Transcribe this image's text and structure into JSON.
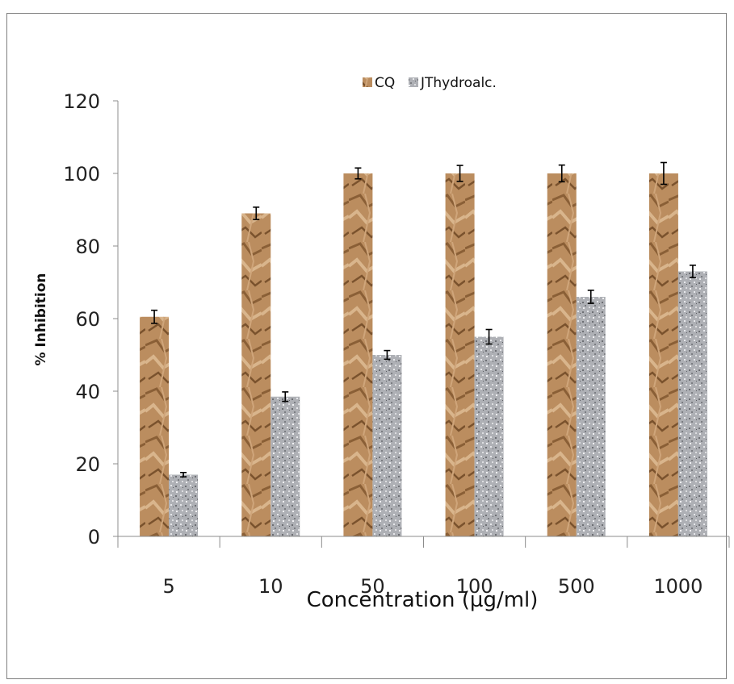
{
  "chart_data": {
    "type": "bar",
    "categories": [
      "5",
      "10",
      "50",
      "100",
      "500",
      "1000"
    ],
    "series": [
      {
        "name": "CQ",
        "values": [
          60.5,
          89,
          100,
          100,
          100,
          100
        ],
        "errors": [
          1.8,
          1.7,
          1.5,
          2.2,
          2.3,
          3.0
        ],
        "color": "#b8895a"
      },
      {
        "name": "JThydroalc.",
        "values": [
          17,
          38.5,
          50,
          55,
          66,
          73
        ],
        "errors": [
          0.6,
          1.3,
          1.2,
          2.0,
          1.8,
          1.7
        ],
        "color": "#a9abb0"
      }
    ],
    "title": "",
    "xlabel": "Concentration (µg/ml)",
    "ylabel": "% Inhibition",
    "ylim": [
      0,
      120
    ],
    "yticks": [
      "0",
      "20",
      "40",
      "60",
      "80",
      "100",
      "120"
    ],
    "grid": false,
    "legend_position": "top-center"
  }
}
